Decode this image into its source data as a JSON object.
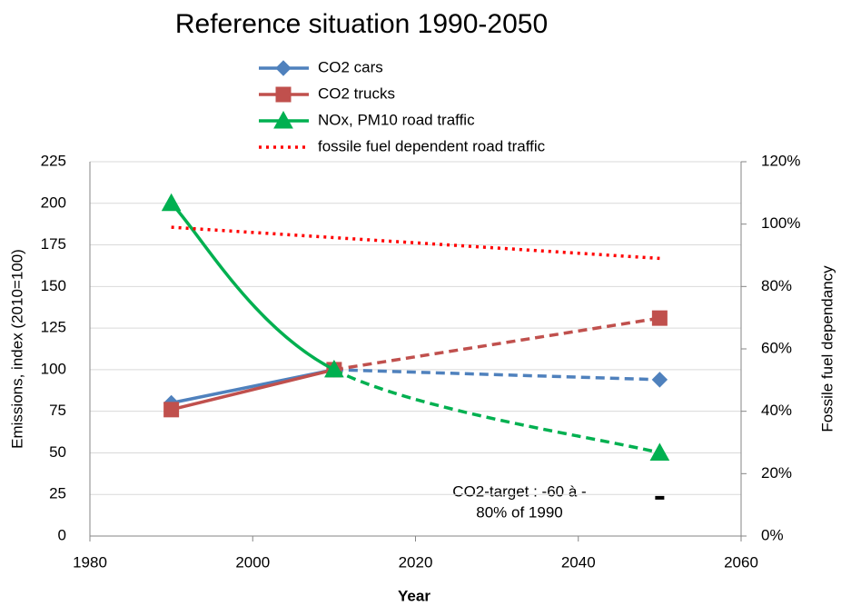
{
  "chart_data": {
    "type": "line",
    "title": "Reference situation 1990-2050",
    "x_label": "Year",
    "y_label": "Emissions, index (2010=100)",
    "y2_label": "Fossile fuel dependancy",
    "xlim": [
      1980,
      2060
    ],
    "xticks": [
      1980,
      2000,
      2020,
      2040,
      2060
    ],
    "ylim": [
      0,
      225
    ],
    "yticks": [
      0,
      25,
      50,
      75,
      100,
      125,
      150,
      175,
      200,
      225
    ],
    "y2lim": [
      0,
      120
    ],
    "y2ticks": [
      {
        "value": 0,
        "label": "0%"
      },
      {
        "value": 20,
        "label": "20%"
      },
      {
        "value": 40,
        "label": "40%"
      },
      {
        "value": 60,
        "label": "60%"
      },
      {
        "value": 80,
        "label": "80%"
      },
      {
        "value": 100,
        "label": "100%"
      },
      {
        "value": 120,
        "label": "120%"
      }
    ],
    "grid": true,
    "dashed_after": 2010,
    "series": [
      {
        "name": "CO2 cars",
        "color": "#4f81bd",
        "marker": "diamond",
        "x": [
          1990,
          2010,
          2050
        ],
        "values": [
          80,
          100,
          94
        ]
      },
      {
        "name": "CO2 trucks",
        "color": "#c0504d",
        "marker": "square",
        "x": [
          1990,
          2010,
          2050
        ],
        "values": [
          76,
          100,
          131
        ]
      },
      {
        "name": "NOx, PM10 road traffic",
        "color": "#00b050",
        "marker": "triangle",
        "smooth": true,
        "x": [
          1990,
          2010,
          2050
        ],
        "values": [
          200,
          100,
          50
        ]
      },
      {
        "name": "fossile fuel dependent road traffic",
        "color": "#ff0000",
        "style": "dotted",
        "axis": "y2",
        "x": [
          1990,
          2050
        ],
        "values": [
          99,
          89
        ]
      }
    ],
    "annotations": [
      "CO2-target : -60 à  -",
      "80% of 1990"
    ],
    "target": {
      "x": 2050,
      "value": 23,
      "color": "#000000"
    }
  }
}
